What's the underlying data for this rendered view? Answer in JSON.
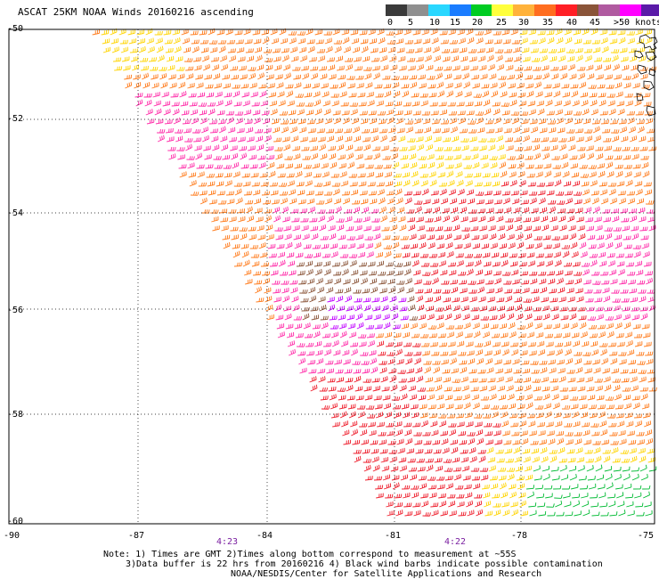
{
  "title": "ASCAT 25KM NOAA Winds 20160216 ascending",
  "colorbar": {
    "labels": [
      "0",
      "5",
      "10",
      "15",
      "20",
      "25",
      "30",
      "35",
      "40",
      "45"
    ],
    "unit_label": ">50 knots",
    "colors": [
      "#3a3a3a",
      "#8f8f8f",
      "#29d7ff",
      "#1a7cff",
      "#00cc22",
      "#ffff3c",
      "#ffb23a",
      "#ff6d1f",
      "#ff1f25",
      "#8a5438",
      "#b05aa0",
      "#ff00ff",
      "#5a1aa8"
    ]
  },
  "latitude_labels": [
    "-50",
    "-52",
    "-54",
    "-56",
    "-58",
    "-60"
  ],
  "longitude_labels": [
    "-90",
    "-87",
    "-84",
    "-81",
    "-78",
    "-75"
  ],
  "times": [
    "4:23",
    "4:22"
  ],
  "notes": [
    "Note: 1) Times are GMT 2)Times along bottom correspond to measurement at ~55S",
    "3)Data buffer is 22 hrs from 20160216 4) Black wind barbs indicate possible contamination",
    "NOAA/NESDIS/Center for Satellite Applications and Research"
  ],
  "map": {
    "projection": "lat-lon",
    "lat_range": [
      -60,
      -50
    ],
    "lon_range": [
      -90,
      -75
    ],
    "grid": "dotted",
    "barb_colors": {
      "green": "#00bb33",
      "yellow": "#ffd400",
      "orange": "#ff7a1a",
      "red": "#ee1c2a",
      "magenta": "#ff2aa8",
      "brown": "#8a5438",
      "purple": "#c000ff",
      "black": "#222222"
    }
  }
}
